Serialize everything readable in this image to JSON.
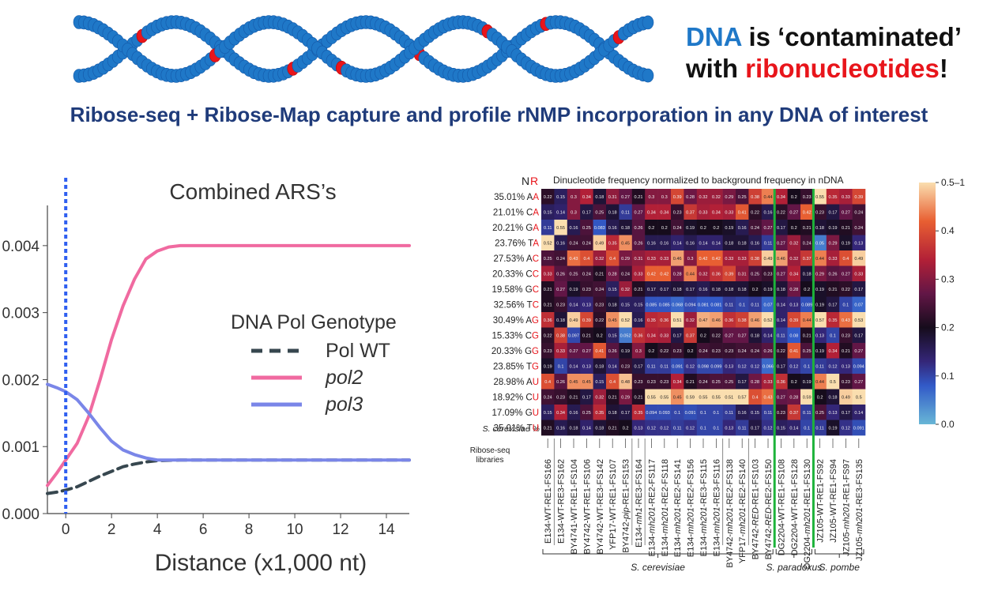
{
  "header": {
    "line1_dna": "DNA",
    "line1_rest": " is ‘contaminated’",
    "line2_with": "with ",
    "line2_ribo": "ribonucleotides",
    "line2_end": "!",
    "subtitle": "Ribose-seq + Ribose-Map capture and profile rNMP incorporation in any DNA of interest"
  },
  "colors": {
    "dna_blue": "#1f78c8",
    "ribo_red": "#e8151b",
    "subtitle_navy": "#1f3b7a",
    "pol_wt": "#37474f",
    "pol2": "#f06aa0",
    "pol3": "#7a86e8",
    "vline": "#2f5ff0",
    "separator_green": "#1db33a"
  },
  "chart_data": [
    {
      "type": "line",
      "title": "Combined ARS’s",
      "xlabel": "Distance (x1,000 nt)",
      "ylabel": "",
      "xlim": [
        -0.8,
        15
      ],
      "ylim": [
        0,
        0.0046
      ],
      "xticks": [
        "0",
        "2",
        "4",
        "6",
        "8",
        "10",
        "12",
        "14"
      ],
      "yticks": [
        "0.000",
        "0.001",
        "0.002",
        "0.003",
        "0.004"
      ],
      "legend_title": "DNA Pol Genotype",
      "legend_position": "center-right",
      "vline_x": 0,
      "series": [
        {
          "name": "Pol WT",
          "style": "dashed",
          "x": [
            -0.8,
            -0.4,
            0,
            0.5,
            1,
            1.5,
            2,
            2.5,
            3,
            3.5,
            4,
            5,
            6,
            8,
            10,
            12,
            15
          ],
          "y": [
            0.0003,
            0.00032,
            0.00035,
            0.0004,
            0.00048,
            0.00056,
            0.00063,
            0.0007,
            0.00074,
            0.00077,
            0.00079,
            0.0008,
            0.0008,
            0.0008,
            0.0008,
            0.0008,
            0.0008
          ]
        },
        {
          "name": "pol2",
          "style": "solid",
          "x": [
            -0.8,
            -0.4,
            0,
            0.5,
            1,
            1.5,
            2,
            2.5,
            3,
            3.5,
            4,
            4.5,
            5,
            6,
            8,
            10,
            12,
            15
          ],
          "y": [
            0.00042,
            0.0006,
            0.0008,
            0.00105,
            0.00145,
            0.002,
            0.0026,
            0.0031,
            0.0035,
            0.0038,
            0.00392,
            0.00398,
            0.004,
            0.004,
            0.004,
            0.004,
            0.004,
            0.004
          ]
        },
        {
          "name": "pol3",
          "style": "solid",
          "x": [
            -0.8,
            -0.4,
            0,
            0.5,
            1,
            1.5,
            2,
            2.5,
            3,
            3.5,
            4,
            5,
            6,
            8,
            10,
            12,
            15
          ],
          "y": [
            0.00193,
            0.00188,
            0.00182,
            0.0017,
            0.0015,
            0.00128,
            0.00108,
            0.00095,
            0.00088,
            0.00083,
            0.0008,
            0.0008,
            0.0008,
            0.0008,
            0.0008,
            0.0008,
            0.0008
          ]
        }
      ]
    },
    {
      "type": "heatmap",
      "title": "Dinucleotide frequency normalized to background frequency in nDNA",
      "corner_N": "N",
      "corner_R": "R",
      "row_pct_label": "S. cerevisiae %",
      "libraries_label": "Ribose-seq\nlibraries",
      "colorbar_ticks": [
        "0.5–1",
        "0.4",
        "0.3",
        "0.2",
        "0.1",
        "0.0"
      ],
      "rows": [
        {
          "pct": "35.01%",
          "n": "A",
          "r": "A"
        },
        {
          "pct": "21.01%",
          "n": "C",
          "r": "A"
        },
        {
          "pct": "20.21%",
          "n": "G",
          "r": "A"
        },
        {
          "pct": "23.76%",
          "n": "T",
          "r": "A"
        },
        {
          "pct": "27.53%",
          "n": "A",
          "r": "C"
        },
        {
          "pct": "20.33%",
          "n": "C",
          "r": "C"
        },
        {
          "pct": "19.58%",
          "n": "G",
          "r": "C"
        },
        {
          "pct": "32.56%",
          "n": "T",
          "r": "C"
        },
        {
          "pct": "30.49%",
          "n": "A",
          "r": "G"
        },
        {
          "pct": "15.33%",
          "n": "C",
          "r": "G"
        },
        {
          "pct": "20.33%",
          "n": "G",
          "r": "G"
        },
        {
          "pct": "23.85%",
          "n": "T",
          "r": "G"
        },
        {
          "pct": "28.98%",
          "n": "A",
          "r": "U"
        },
        {
          "pct": "18.92%",
          "n": "C",
          "r": "U"
        },
        {
          "pct": "17.09%",
          "n": "G",
          "r": "U"
        },
        {
          "pct": "35.01%",
          "n": "T",
          "r": "U"
        }
      ],
      "columns": [
        [
          {
            "t": "E134-WT-RE1-FS166"
          }
        ],
        [
          {
            "t": "E134-WT-RE3-FS162"
          }
        ],
        [
          {
            "t": "BY4741-WT-RE1-FS104"
          }
        ],
        [
          {
            "t": "BY4742-WT-RE1-FS106"
          }
        ],
        [
          {
            "t": "BY4742-WT-RE3-FS142"
          }
        ],
        [
          {
            "t": "YFP17-WT-RE1-FS107"
          }
        ],
        [
          {
            "t": "BY4742-"
          },
          {
            "t": "pip",
            "i": true
          },
          {
            "t": "-RE1-FS153"
          }
        ],
        [
          {
            "t": "E134-"
          },
          {
            "t": "mh1",
            "i": true
          },
          {
            "t": "-RE3-FS164"
          }
        ],
        [
          {
            "t": "E134-"
          },
          {
            "t": "mh201",
            "i": true
          },
          {
            "t": "-RE2-FS117"
          }
        ],
        [
          {
            "t": "E134-"
          },
          {
            "t": "mh201",
            "i": true
          },
          {
            "t": "-RE2-FS118"
          }
        ],
        [
          {
            "t": "E134-"
          },
          {
            "t": "mh201",
            "i": true
          },
          {
            "t": "-RE2-FS141"
          }
        ],
        [
          {
            "t": "E134-"
          },
          {
            "t": "mh201",
            "i": true
          },
          {
            "t": "-RE2-FS156"
          }
        ],
        [
          {
            "t": "E134-"
          },
          {
            "t": "mh201",
            "i": true
          },
          {
            "t": "-RE3-FS115"
          }
        ],
        [
          {
            "t": "E134-"
          },
          {
            "t": "mh201",
            "i": true
          },
          {
            "t": "-RE3-FS116"
          }
        ],
        [
          {
            "t": "BY4742-"
          },
          {
            "t": "mh201",
            "i": true
          },
          {
            "t": "-RE2-FS138"
          }
        ],
        [
          {
            "t": "YFP17-"
          },
          {
            "t": "mh201",
            "i": true
          },
          {
            "t": "-RE2-FS140"
          }
        ],
        [
          {
            "t": "BY4742-"
          },
          {
            "t": "RED",
            "i": true
          },
          {
            "t": "-RE1-FS103"
          }
        ],
        [
          {
            "t": "BY4742-"
          },
          {
            "t": "RED",
            "i": true
          },
          {
            "t": "-RE2-FS150"
          }
        ],
        [
          {
            "t": "DG2204-WT-RE1-FS108"
          }
        ],
        [
          {
            "t": "DG2204-WT-RE1-FS128"
          }
        ],
        [
          {
            "t": "DG2204-"
          },
          {
            "t": "mh201",
            "i": true
          },
          {
            "t": "-RE1-FS130"
          }
        ],
        [
          {
            "t": "JZ105-WT-RE1-FS92"
          }
        ],
        [
          {
            "t": "JZ105-WT-RE1-FS94"
          }
        ],
        [
          {
            "t": "JZ105-"
          },
          {
            "t": "mh201",
            "i": true
          },
          {
            "t": "-RE1-FS97"
          }
        ],
        [
          {
            "t": "JZ105-"
          },
          {
            "t": "mh201",
            "i": true
          },
          {
            "t": "-RE3-FS135"
          }
        ]
      ],
      "values": [
        [
          0.22,
          0.15,
          0.3,
          0.34,
          0.18,
          0.31,
          0.27,
          0.21,
          0.3,
          0.3,
          0.39,
          0.28,
          0.32,
          0.32,
          0.29,
          0.25,
          0.38,
          0.44,
          0.34,
          0.2,
          0.23,
          0.55,
          0.35,
          0.33,
          0.39
        ],
        [
          0.15,
          0.14,
          0.3,
          0.17,
          0.25,
          0.18,
          0.11,
          0.27,
          0.34,
          0.34,
          0.23,
          0.37,
          0.33,
          0.34,
          0.33,
          0.41,
          0.22,
          0.16,
          0.22,
          0.27,
          0.42,
          0.23,
          0.17,
          0.27,
          0.24
        ],
        [
          0.11,
          0.55,
          0.16,
          0.25,
          0.083,
          0.16,
          0.18,
          0.26,
          0.2,
          0.2,
          0.24,
          0.19,
          0.2,
          0.2,
          0.19,
          0.16,
          0.24,
          0.27,
          0.17,
          0.2,
          0.21,
          0.18,
          0.19,
          0.21,
          0.24
        ],
        [
          0.52,
          0.16,
          0.24,
          0.24,
          0.49,
          0.35,
          0.45,
          0.26,
          0.16,
          0.16,
          0.14,
          0.16,
          0.14,
          0.14,
          0.18,
          0.18,
          0.16,
          0.11,
          0.27,
          0.32,
          0.24,
          0.05,
          0.29,
          0.19,
          0.13
        ],
        [
          0.25,
          0.24,
          0.43,
          0.4,
          0.32,
          0.4,
          0.29,
          0.31,
          0.33,
          0.33,
          0.46,
          0.3,
          0.42,
          0.42,
          0.33,
          0.33,
          0.38,
          0.49,
          0.46,
          0.32,
          0.37,
          0.44,
          0.33,
          0.4,
          0.49
        ],
        [
          0.33,
          0.26,
          0.25,
          0.24,
          0.21,
          0.28,
          0.24,
          0.33,
          0.42,
          0.42,
          0.28,
          0.44,
          0.32,
          0.36,
          0.39,
          0.31,
          0.25,
          0.23,
          0.27,
          0.34,
          0.18,
          0.29,
          0.26,
          0.27,
          0.33
        ],
        [
          0.21,
          0.27,
          0.19,
          0.23,
          0.24,
          0.15,
          0.32,
          0.21,
          0.17,
          0.17,
          0.18,
          0.17,
          0.16,
          0.18,
          0.18,
          0.18,
          0.2,
          0.19,
          0.18,
          0.28,
          0.2,
          0.19,
          0.21,
          0.22,
          0.17
        ],
        [
          0.21,
          0.23,
          0.14,
          0.13,
          0.23,
          0.18,
          0.15,
          0.15,
          0.085,
          0.085,
          0.068,
          0.094,
          0.081,
          0.081,
          0.11,
          0.1,
          0.11,
          0.07,
          0.14,
          0.13,
          0.089,
          0.19,
          0.17,
          0.1,
          0.07
        ],
        [
          0.36,
          0.18,
          0.49,
          0.39,
          0.22,
          0.45,
          0.52,
          0.16,
          0.35,
          0.36,
          0.51,
          0.32,
          0.47,
          0.46,
          0.36,
          0.38,
          0.46,
          0.52,
          0.14,
          0.39,
          0.44,
          0.57,
          0.35,
          0.43,
          0.53
        ],
        [
          0.22,
          0.38,
          0.097,
          0.21,
          0.2,
          0.15,
          0.052,
          0.36,
          0.34,
          0.33,
          0.17,
          0.37,
          0.2,
          0.22,
          0.27,
          0.27,
          0.18,
          0.14,
          0.11,
          0.08,
          0.21,
          0.13,
          0.1,
          0.23,
          0.17
        ],
        [
          0.23,
          0.33,
          0.27,
          0.27,
          0.41,
          0.26,
          0.19,
          0.3,
          0.2,
          0.22,
          0.23,
          0.2,
          0.24,
          0.23,
          0.23,
          0.24,
          0.24,
          0.26,
          0.22,
          0.41,
          0.25,
          0.19,
          0.34,
          0.21,
          0.27
        ],
        [
          0.19,
          0.1,
          0.14,
          0.13,
          0.18,
          0.14,
          0.23,
          0.17,
          0.11,
          0.11,
          0.091,
          0.12,
          0.098,
          0.099,
          0.13,
          0.12,
          0.12,
          0.066,
          0.17,
          0.12,
          0.1,
          0.11,
          0.12,
          0.13,
          0.094
        ],
        [
          0.4,
          0.26,
          0.45,
          0.45,
          0.15,
          0.4,
          0.48,
          0.23,
          0.23,
          0.23,
          0.34,
          0.21,
          0.24,
          0.25,
          0.25,
          0.17,
          0.28,
          0.33,
          0.36,
          0.2,
          0.19,
          0.44,
          0.5,
          0.23,
          0.27
        ],
        [
          0.24,
          0.23,
          0.21,
          0.17,
          0.32,
          0.21,
          0.29,
          0.21,
          0.55,
          0.55,
          0.45,
          0.59,
          0.55,
          0.55,
          0.51,
          0.57,
          0.4,
          0.43,
          0.27,
          0.28,
          0.59,
          0.2,
          0.18,
          0.49,
          0.5
        ],
        [
          0.15,
          0.34,
          0.16,
          0.25,
          0.35,
          0.18,
          0.17,
          0.35,
          0.094,
          0.093,
          0.1,
          0.091,
          0.1,
          0.1,
          0.11,
          0.16,
          0.15,
          0.11,
          0.23,
          0.37,
          0.11,
          0.25,
          0.13,
          0.17,
          0.14
        ],
        [
          0.21,
          0.16,
          0.18,
          0.14,
          0.18,
          0.21,
          0.2,
          0.13,
          0.12,
          0.12,
          0.11,
          0.12,
          0.1,
          0.1,
          0.13,
          0.11,
          0.17,
          0.12,
          0.15,
          0.14,
          0.1,
          0.11,
          0.19,
          0.12,
          0.091
        ]
      ],
      "species_groups": [
        {
          "label": "S. cerevisiae",
          "from": 0,
          "to": 17
        },
        {
          "label": "S. paradoxus",
          "from": 18,
          "to": 20
        },
        {
          "label": "S. pombe",
          "from": 21,
          "to": 24
        }
      ],
      "gray_separators_after": [
        0,
        6,
        7,
        13,
        15
      ],
      "green_separators_after": [
        17,
        20
      ]
    }
  ]
}
